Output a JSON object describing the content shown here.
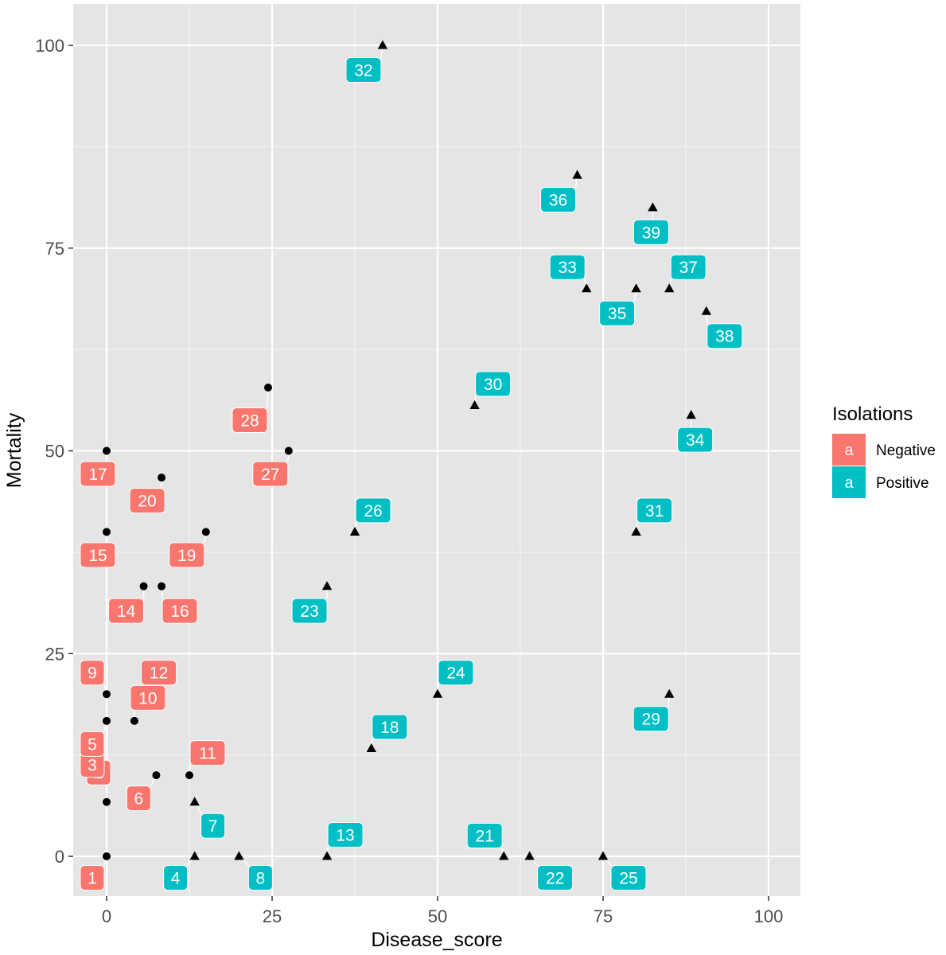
{
  "chart_data": {
    "type": "scatter",
    "xlabel": "Disease_score",
    "ylabel": "Mortality",
    "xlim": [
      -5,
      105
    ],
    "ylim": [
      -5,
      105
    ],
    "x_ticks": [
      0,
      25,
      50,
      75,
      100
    ],
    "y_ticks": [
      0,
      25,
      50,
      75,
      100
    ],
    "x_tick_labels": [
      "0",
      "25",
      "50",
      "75",
      "100"
    ],
    "y_tick_labels": [
      "0",
      "25",
      "50",
      "75",
      "100"
    ],
    "grid": true,
    "background": "#e5e5e5",
    "legend": {
      "title": "Isolations",
      "position": "right",
      "key_text": "a",
      "entries": [
        {
          "name": "Negative",
          "color": "#f8766d"
        },
        {
          "name": "Positive",
          "color": "#00bfc4"
        }
      ]
    },
    "series": [
      {
        "name": "Negative",
        "color": "#f8766d",
        "marker": "circle",
        "points": [
          {
            "label": "1",
            "x": 0,
            "y": 0
          },
          {
            "label": "2",
            "x": 0,
            "y": 6.7
          },
          {
            "label": "3",
            "x": 0,
            "y": 10
          },
          {
            "label": "5",
            "x": 0,
            "y": 16.7
          },
          {
            "label": "6",
            "x": 7.5,
            "y": 10
          },
          {
            "label": "9",
            "x": 0,
            "y": 20
          },
          {
            "label": "10",
            "x": 4.2,
            "y": 16.7
          },
          {
            "label": "11",
            "x": 12.5,
            "y": 10
          },
          {
            "label": "12",
            "x": 5,
            "y": 20
          },
          {
            "label": "14",
            "x": 5.6,
            "y": 33.3
          },
          {
            "label": "15",
            "x": 0,
            "y": 40
          },
          {
            "label": "16",
            "x": 8.3,
            "y": 33.3
          },
          {
            "label": "17",
            "x": 0,
            "y": 50
          },
          {
            "label": "19",
            "x": 15,
            "y": 40
          },
          {
            "label": "20",
            "x": 8.3,
            "y": 46.7
          },
          {
            "label": "27",
            "x": 27.5,
            "y": 50
          },
          {
            "label": "28",
            "x": 24.4,
            "y": 57.8
          }
        ]
      },
      {
        "name": "Positive",
        "color": "#00bfc4",
        "marker": "triangle",
        "points": [
          {
            "label": "4",
            "x": 13.3,
            "y": 0
          },
          {
            "label": "7",
            "x": 13.3,
            "y": 6.7
          },
          {
            "label": "8",
            "x": 20,
            "y": 0
          },
          {
            "label": "13",
            "x": 33.3,
            "y": 0
          },
          {
            "label": "18",
            "x": 40,
            "y": 13.3
          },
          {
            "label": "21",
            "x": 60,
            "y": 0
          },
          {
            "label": "22",
            "x": 63.9,
            "y": 0
          },
          {
            "label": "23",
            "x": 33.3,
            "y": 33.3
          },
          {
            "label": "24",
            "x": 50,
            "y": 20
          },
          {
            "label": "25",
            "x": 75,
            "y": 0
          },
          {
            "label": "26",
            "x": 37.5,
            "y": 40
          },
          {
            "label": "29",
            "x": 85,
            "y": 20
          },
          {
            "label": "30",
            "x": 55.6,
            "y": 55.6
          },
          {
            "label": "31",
            "x": 80,
            "y": 40
          },
          {
            "label": "32",
            "x": 41.7,
            "y": 100
          },
          {
            "label": "33",
            "x": 72.5,
            "y": 70
          },
          {
            "label": "34",
            "x": 88.3,
            "y": 54.4
          },
          {
            "label": "35",
            "x": 80,
            "y": 70
          },
          {
            "label": "36",
            "x": 71.1,
            "y": 84
          },
          {
            "label": "37",
            "x": 85,
            "y": 70
          },
          {
            "label": "38",
            "x": 90.6,
            "y": 67.2
          },
          {
            "label": "39",
            "x": 82.5,
            "y": 80
          }
        ]
      }
    ]
  }
}
